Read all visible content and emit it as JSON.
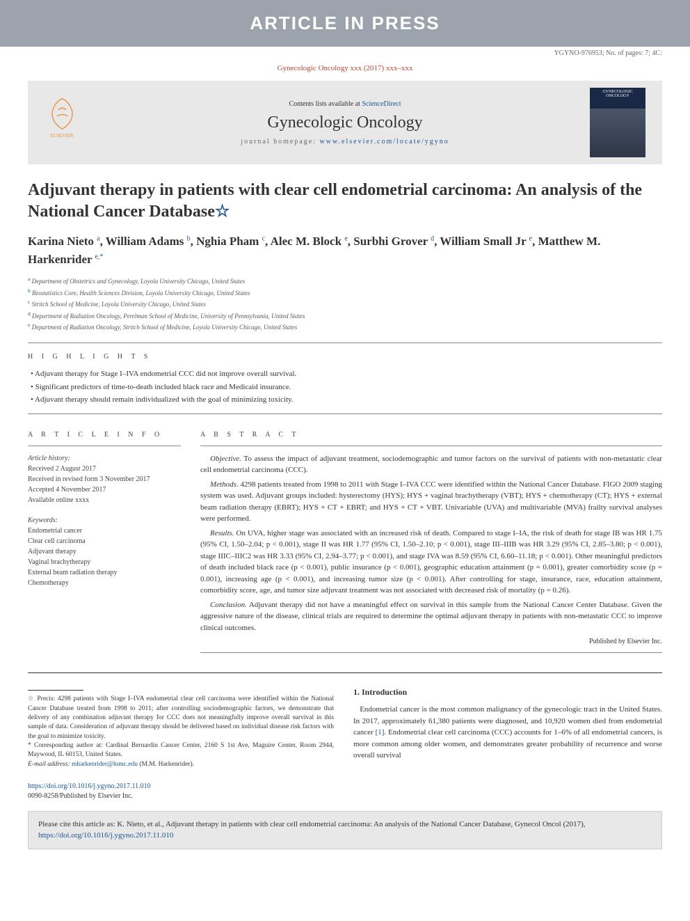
{
  "banner": {
    "text": "ARTICLE IN PRESS"
  },
  "meta": {
    "refcode": "YGYNO-976953; No. of pages: 7; 4C:",
    "citation_line": "Gynecologic Oncology xxx (2017) xxx–xxx"
  },
  "header": {
    "contents_prefix": "Contents lists available at ",
    "contents_link": "ScienceDirect",
    "journal_name": "Gynecologic Oncology",
    "homepage_prefix": "journal homepage: ",
    "homepage_url": "www.elsevier.com/locate/ygyno",
    "publisher_name": "ELSEVIER",
    "cover_title": "GYNECOLOGIC ONCOLOGY"
  },
  "article": {
    "title": "Adjuvant therapy in patients with clear cell endometrial carcinoma: An analysis of the National Cancer Database",
    "star": "☆",
    "authors_html": "Karina Nieto <sup>a</sup>, William Adams <sup>b</sup>, Nghia Pham <sup>c</sup>, Alec M. Block <sup>e</sup>, Surbhi Grover <sup>d</sup>, William Small Jr <sup>e</sup>, Matthew M. Harkenrider <sup>e,*</sup>",
    "affiliations": [
      {
        "sup": "a",
        "text": "Department of Obstetrics and Gynecology, Loyola University Chicago, United States"
      },
      {
        "sup": "b",
        "text": "Biostatistics Core, Health Sciences Division, Loyola University Chicago, United States"
      },
      {
        "sup": "c",
        "text": "Stritch School of Medicine, Loyola University Chicago, United States"
      },
      {
        "sup": "d",
        "text": "Department of Radiation Oncology, Perelman School of Medicine, University of Pennsylvania, United States"
      },
      {
        "sup": "e",
        "text": "Department of Radiation Oncology, Stritch School of Medicine, Loyola University Chicago, United States"
      }
    ]
  },
  "highlights": {
    "label": "H I G H L I G H T S",
    "items": [
      "Adjuvant therapy for Stage I–IVA endometrial CCC did not improve overall survival.",
      "Significant predictors of time-to-death included black race and Medicaid insurance.",
      "Adjuvant therapy should remain individualized with the goal of minimizing toxicity."
    ]
  },
  "info": {
    "label": "A R T I C L E   I N F O",
    "history_label": "Article history:",
    "history": [
      "Received 2 August 2017",
      "Received in revised form 3 November 2017",
      "Accepted 4 November 2017",
      "Available online xxxx"
    ],
    "keywords_label": "Keywords:",
    "keywords": [
      "Endometrial cancer",
      "Clear cell carcinoma",
      "Adjuvant therapy",
      "Vaginal brachytherapy",
      "External beam radiation therapy",
      "Chemotherapy"
    ]
  },
  "abstract": {
    "label": "A B S T R A C T",
    "paras": [
      {
        "head": "Objective.",
        "body": "To assess the impact of adjuvant treatment, sociodemographic and tumor factors on the survival of patients with non-metastatic clear cell endometrial carcinoma (CCC)."
      },
      {
        "head": "Methods.",
        "body": "4298 patients treated from 1998 to 2011 with Stage I–IVA CCC were identified within the National Cancer Database. FIGO 2009 staging system was used. Adjuvant groups included: hysterectomy (HYS); HYS + vaginal brachytherapy (VBT); HYS + chemotherapy (CT); HYS + external beam radiation therapy (EBRT); HYS + CT + EBRT; and HYS + CT + VBT. Univariable (UVA) and multivariable (MVA) frailty survival analyses were performed."
      },
      {
        "head": "Results.",
        "body": "On UVA, higher stage was associated with an increased risk of death. Compared to stage I–IA, the risk of death for stage IB was HR 1.75 (95% CI, 1.50–2.04; p < 0.001), stage II was HR 1.77 (95% CI, 1.50–2.10; p < 0.001), stage III–IIIB was HR 3.29 (95% CI, 2.85–3.80; p < 0.001), stage IIIC–IIIC2 was HR 3.33 (95% CI, 2.94–3.77; p < 0.001), and stage IVA was 8.59 (95% CI, 6.60–11.18; p < 0.001). Other meaningful predictors of death included black race (p < 0.001), public insurance (p < 0.001), geographic education attainment (p = 0.001), greater comorbidity score (p = 0.001), increasing age (p < 0.001), and increasing tumor size (p < 0.001). After controlling for stage, insurance, race, education attainment, comorbidity score, age, and tumor size adjuvant treatment was not associated with decreased risk of mortality (p = 0.26)."
      },
      {
        "head": "Conclusion.",
        "body": "Adjuvant therapy did not have a meaningful effect on survival in this sample from the National Cancer Center Database. Given the aggressive nature of the disease, clinical trials are required to determine the optimal adjuvant therapy in patients with non-metastatic CCC to improve clinical outcomes."
      }
    ],
    "published_by": "Published by Elsevier Inc."
  },
  "footnotes": {
    "precis_label": "☆",
    "precis": "Precis: 4298 patients with Stage I–IVA endometrial clear cell carcinoma were identified within the National Cancer Database treated from 1998 to 2011; after controlling sociodemographic factors, we demonstrate that delivery of any combination adjuvant therapy for CCC does not meaningfully improve overall survival in this sample of data. Consideration of adjuvant therapy should be delivered based on individual disease risk factors with the goal to minimize toxicity.",
    "corr_label": "*",
    "corr": "Corresponding author at: Cardinal Bernardin Cancer Center, 2160 S 1st Ave, Maguire Center, Room 2944, Maywood, IL 60153, United States.",
    "email_label": "E-mail address:",
    "email": "mharkenrider@lumc.edu",
    "email_author": "(M.M. Harkenrider)."
  },
  "intro": {
    "heading": "1. Introduction",
    "para": "Endometrial cancer is the most common malignancy of the gynecologic tract in the United States. In 2017, approximately 61,380 patients were diagnosed, and 10,920 women died from endometrial cancer ",
    "ref": "[1]",
    "para_cont": ". Endometrial clear cell carcinoma (CCC) accounts for 1–6% of all endometrial cancers, is more common among older women, and demonstrates greater probability of recurrence and worse overall survival"
  },
  "doi": {
    "url": "https://doi.org/10.1016/j.ygyno.2017.11.010",
    "issn": "0090-8258/Published by Elsevier Inc."
  },
  "citebox": {
    "prefix": "Please cite this article as: K. Nieto, et al., Adjuvant therapy in patients with clear cell endometrial carcinoma: An analysis of the National Cancer Database, Gynecol Oncol (2017), ",
    "link": "https://doi.org/10.1016/j.ygyno.2017.11.010"
  },
  "colors": {
    "banner_bg": "#9ca3ad",
    "link": "#1a5490",
    "citation": "#b8432e",
    "header_bg": "#e8e8e8"
  }
}
